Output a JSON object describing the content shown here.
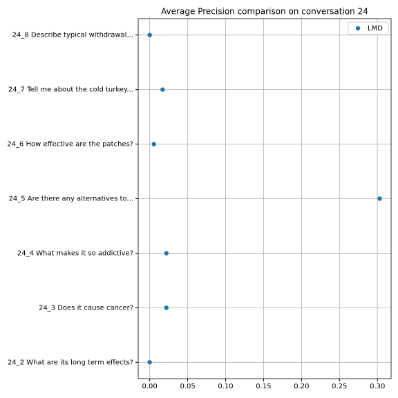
{
  "chart_data": {
    "type": "scatter",
    "title": "Average Precision comparison on conversation 24",
    "categories": [
      "24_2 What are its long term effects?",
      "24_3 Does it cause cancer?",
      "24_4 What makes it so addictive?",
      "24_5 Are there any alternatives to...",
      "24_6 How effective are the patches?",
      "24_7 Tell me about the cold turkey...",
      "24_8 Describe typical withdrawal..."
    ],
    "series": [
      {
        "name": "LMD",
        "color": "#1f77b4",
        "values": [
          0,
          0.022,
          0.022,
          0.303,
          0.0055,
          0.017,
          0
        ]
      }
    ],
    "xlim": [
      -0.01515,
      0.318
    ],
    "xticks": [
      {
        "value": 0,
        "label": "0.00"
      },
      {
        "value": 0.05,
        "label": "0.05"
      },
      {
        "value": 0.1,
        "label": "0.10"
      },
      {
        "value": 0.15,
        "label": "0.15"
      },
      {
        "value": 0.2,
        "label": "0.20"
      },
      {
        "value": 0.25,
        "label": "0.25"
      },
      {
        "value": 0.3,
        "label": "0.30"
      }
    ],
    "grid": true,
    "legend": "upper right"
  }
}
